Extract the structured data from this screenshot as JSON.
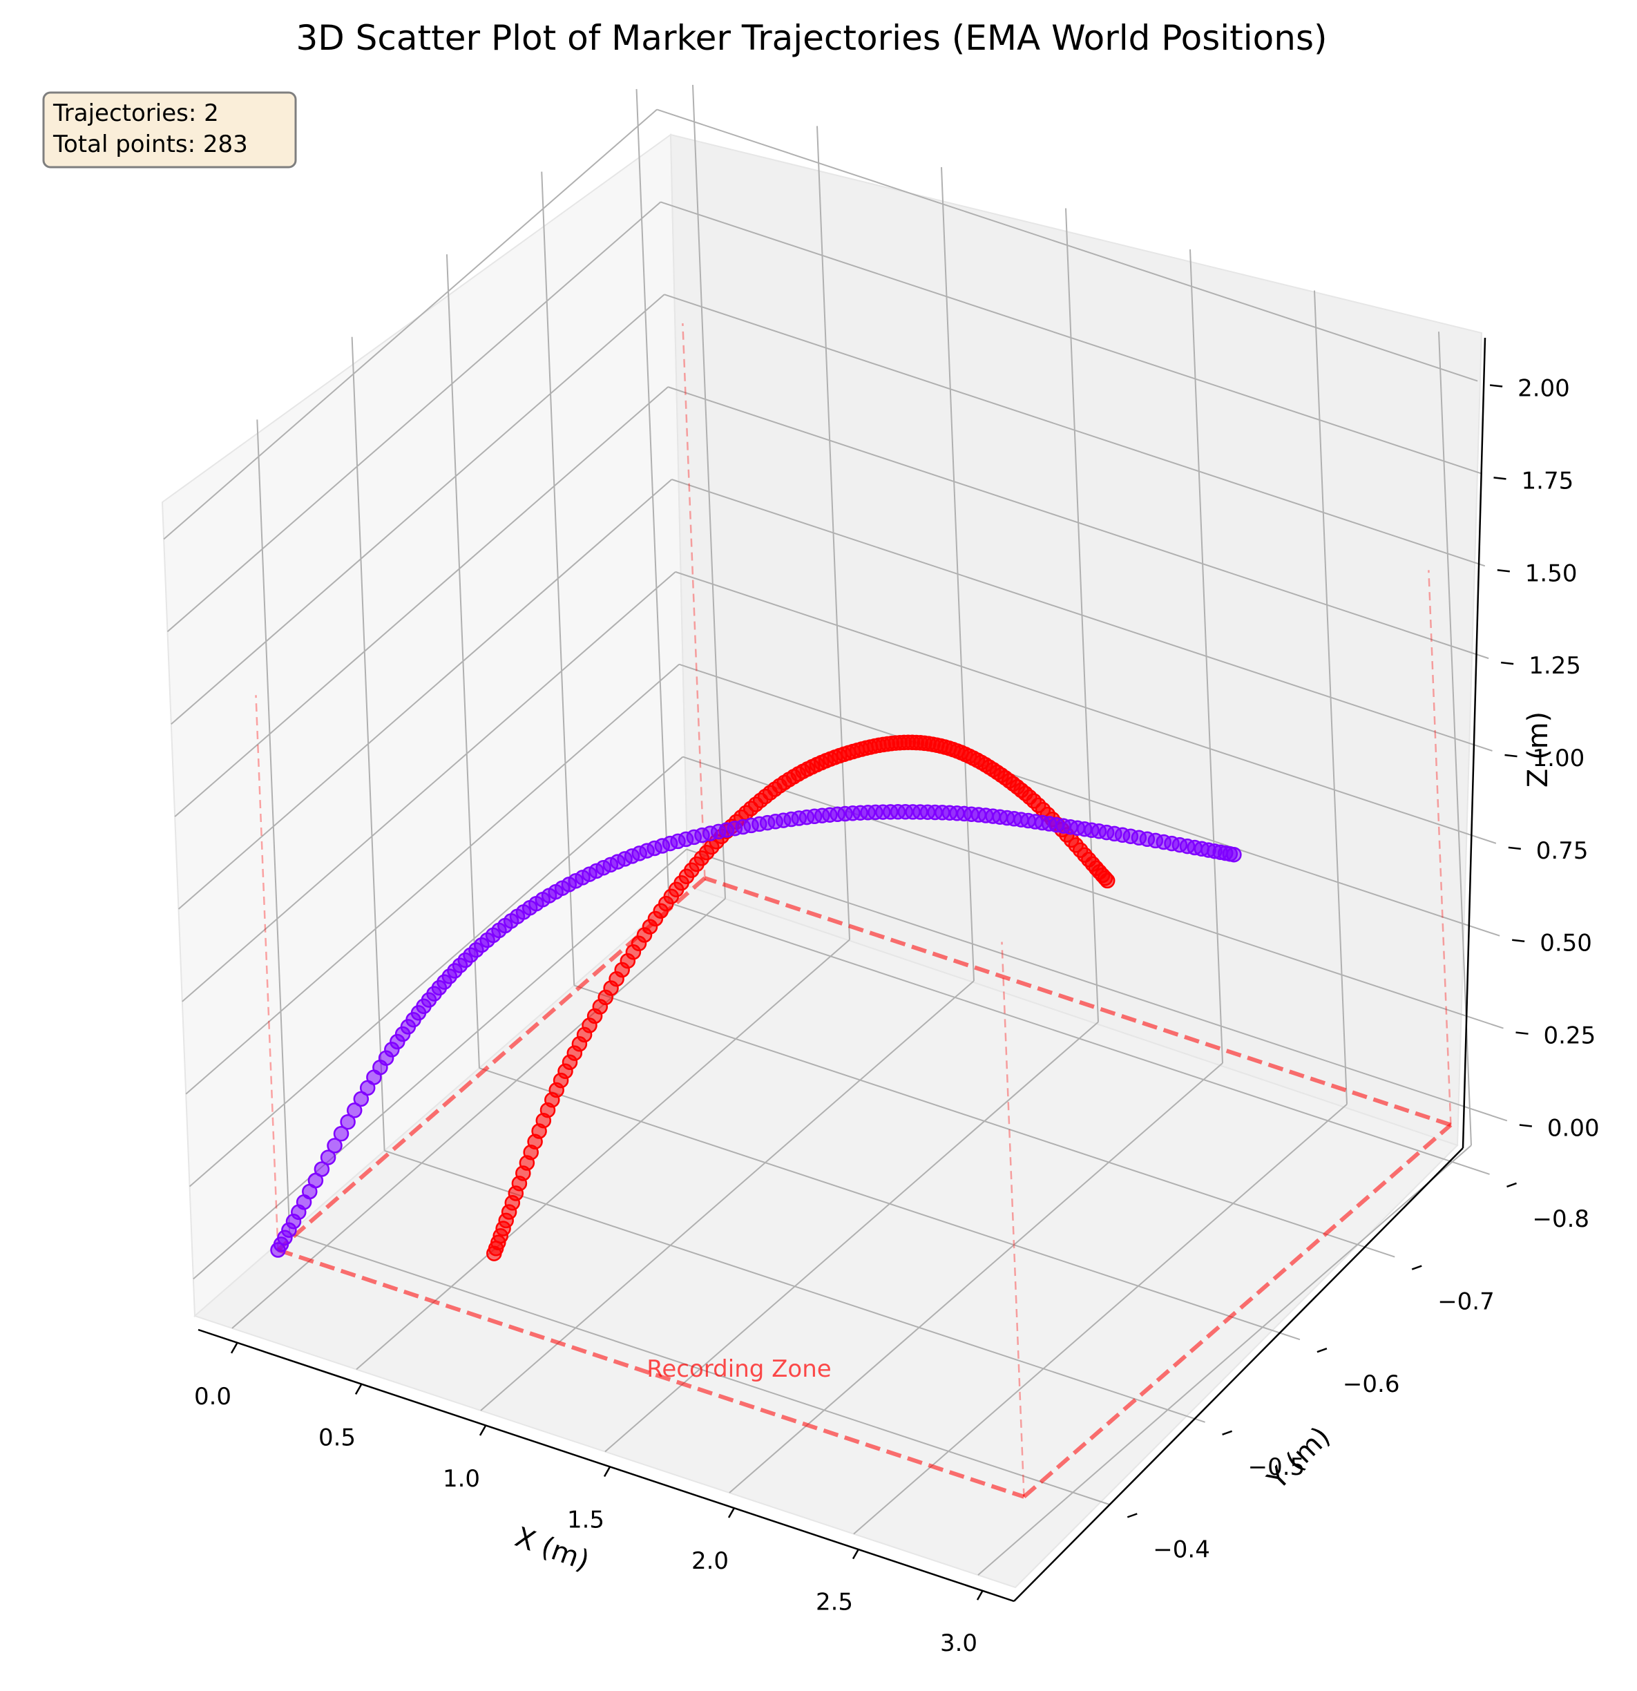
{
  "chart_data": {
    "type": "scatter",
    "projection": "3d",
    "title": "3D Scatter Plot of Marker Trajectories (EMA World Positions)",
    "xlabel": "X (m)",
    "ylabel": "Y (m)",
    "zlabel": "Z (m)",
    "xlim": [
      -0.15,
      3.15
    ],
    "ylim": [
      -0.82,
      -0.3
    ],
    "zlim": [
      -0.1,
      2.1
    ],
    "x_ticks": [
      "0.0",
      "0.5",
      "1.0",
      "1.5",
      "2.0",
      "2.5",
      "3.0"
    ],
    "y_ticks": [
      "−0.8",
      "−0.7",
      "−0.6",
      "−0.5",
      "−0.4"
    ],
    "z_ticks": [
      "0.00",
      "0.25",
      "0.50",
      "0.75",
      "1.00",
      "1.25",
      "1.50",
      "1.75",
      "2.00"
    ],
    "grid": true,
    "legend": null,
    "info_box": {
      "position": "top-left",
      "lines": [
        "Trajectories: 2",
        "Total points: 283"
      ]
    },
    "recording_zone": {
      "label": "Recording Zone",
      "color": "#ff0000",
      "x_range": [
        0.0,
        3.0
      ],
      "y_range": [
        -0.8,
        -0.35
      ],
      "z_range": [
        0.0,
        1.5
      ]
    },
    "series": [
      {
        "color": "#ff0000",
        "n_points": 141,
        "x": [
          1.0,
          1.2,
          1.5,
          1.8,
          2.1,
          2.4,
          2.7,
          3.0
        ],
        "y": [
          -0.32,
          -0.35,
          -0.39,
          -0.42,
          -0.44,
          -0.45,
          -0.455,
          -0.46
        ],
        "z": [
          0.28,
          0.75,
          1.2,
          1.48,
          1.62,
          1.67,
          1.6,
          1.42
        ]
      },
      {
        "color": "#7f00ff",
        "n_points": 142,
        "x": [
          0.0,
          0.3,
          0.6,
          1.0,
          1.5,
          2.0,
          2.5,
          3.0
        ],
        "y": [
          -0.35,
          -0.4,
          -0.44,
          -0.48,
          -0.52,
          -0.55,
          -0.57,
          -0.59
        ],
        "z": [
          0.0,
          0.5,
          0.8,
          1.0,
          1.12,
          1.18,
          1.2,
          1.2
        ]
      }
    ]
  }
}
